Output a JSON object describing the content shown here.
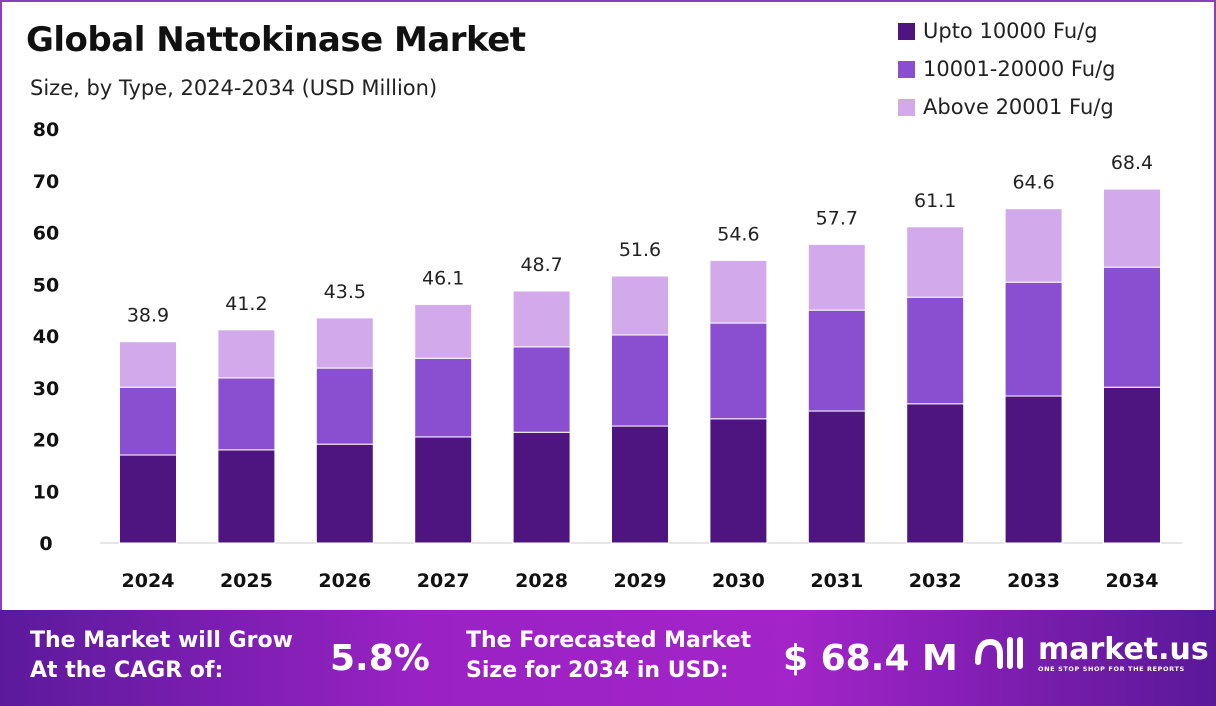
{
  "chart_data": {
    "type": "bar",
    "stacked": true,
    "title": "Global Nattokinase Market",
    "subtitle": "Size, by Type, 2024-2034 (USD Million)",
    "categories": [
      "2024",
      "2025",
      "2026",
      "2027",
      "2028",
      "2029",
      "2030",
      "2031",
      "2032",
      "2033",
      "2034"
    ],
    "series": [
      {
        "name": "Upto 10000 Fu/g",
        "color": "#4e1581",
        "values": [
          17.0,
          18.0,
          19.1,
          20.5,
          21.4,
          22.6,
          24.0,
          25.5,
          26.9,
          28.4,
          30.1
        ]
      },
      {
        "name": "10001-20000 Fu/g",
        "color": "#8a4fd0",
        "values": [
          13.1,
          13.9,
          14.7,
          15.2,
          16.5,
          17.6,
          18.5,
          19.5,
          20.6,
          22.0,
          23.2
        ]
      },
      {
        "name": "Above 20001 Fu/g",
        "color": "#d2aaec",
        "values": [
          8.8,
          9.3,
          9.7,
          10.4,
          10.8,
          11.4,
          12.1,
          12.7,
          13.6,
          14.2,
          15.1
        ]
      }
    ],
    "totals": [
      "38.9",
      "41.2",
      "43.5",
      "46.1",
      "48.7",
      "51.6",
      "54.6",
      "57.7",
      "61.1",
      "64.6",
      "68.4"
    ],
    "yticks": [
      "0",
      "10",
      "20",
      "30",
      "40",
      "50",
      "60",
      "70",
      "80"
    ],
    "ylim": [
      0,
      80
    ],
    "grid": false,
    "legend": "top-right"
  },
  "footer": {
    "cagr_label_1": "The Market will Grow",
    "cagr_label_2": "At the CAGR of:",
    "cagr_value": "5.8%",
    "forecast_label_1": "The Forecasted Market",
    "forecast_label_2": "Size for 2034 in USD:",
    "forecast_value": "$ 68.4 M",
    "logo_text": "market.us",
    "logo_tagline": "ONE STOP SHOP FOR THE REPORTS"
  }
}
